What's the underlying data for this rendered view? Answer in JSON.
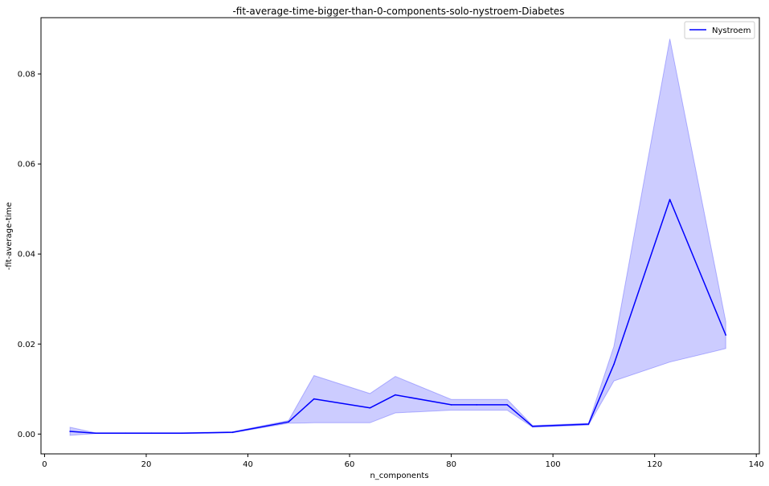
{
  "chart_data": {
    "type": "line",
    "title": "-fit-average-time-bigger-than-0-components-solo-nystroem-Diabetes",
    "xlabel": "n_components",
    "ylabel": "-fit-average-time",
    "xlim": [
      -0.7,
      140.6
    ],
    "ylim": [
      -0.0044,
      0.0925
    ],
    "xticks": [
      0,
      20,
      40,
      60,
      80,
      100,
      120,
      140
    ],
    "yticks": [
      0.0,
      0.02,
      0.04,
      0.06,
      0.08
    ],
    "xtick_labels": [
      "0",
      "20",
      "40",
      "60",
      "80",
      "100",
      "120",
      "140"
    ],
    "ytick_labels": [
      "0.00",
      "0.02",
      "0.04",
      "0.06",
      "0.08"
    ],
    "grid": false,
    "legend_position": "top-right",
    "series": [
      {
        "name": "Nystroem",
        "color": "#0000ff",
        "band_color": "#0000ff",
        "x": [
          5,
          10,
          16,
          21,
          27,
          32,
          37,
          48,
          53,
          64,
          69,
          80,
          85,
          91,
          96,
          107,
          112,
          123,
          134
        ],
        "y": [
          0.0006,
          0.0002,
          0.0002,
          0.0002,
          0.0002,
          0.0003,
          0.0004,
          0.0027,
          0.0078,
          0.0058,
          0.0087,
          0.0065,
          0.0065,
          0.0065,
          0.0017,
          0.0022,
          0.0155,
          0.0521,
          0.022
        ],
        "upper": [
          0.0015,
          0.0003,
          0.0003,
          0.0003,
          0.0003,
          0.0004,
          0.0005,
          0.003,
          0.013,
          0.009,
          0.0128,
          0.0077,
          0.0077,
          0.0077,
          0.0019,
          0.0024,
          0.0195,
          0.0878,
          0.025
        ],
        "lower": [
          -0.0003,
          0.0001,
          0.0001,
          0.0001,
          0.0001,
          0.0002,
          0.0003,
          0.0024,
          0.0025,
          0.0025,
          0.0047,
          0.0053,
          0.0053,
          0.0053,
          0.0015,
          0.002,
          0.0118,
          0.016,
          0.019
        ]
      }
    ]
  }
}
